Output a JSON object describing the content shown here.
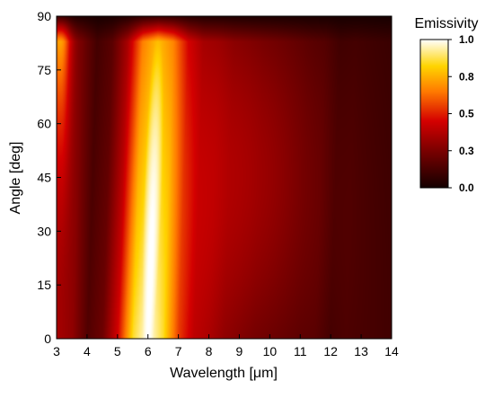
{
  "chart_data": {
    "type": "heatmap",
    "title": "",
    "xlabel": "Wavelength [μm]",
    "ylabel": "Angle  [deg]",
    "xlim": [
      3,
      14
    ],
    "ylim": [
      0,
      90
    ],
    "xticks": [
      "3",
      "4",
      "5",
      "6",
      "7",
      "8",
      "9",
      "10",
      "11",
      "12",
      "13",
      "14"
    ],
    "yticks": [
      "0",
      "15",
      "30",
      "45",
      "60",
      "75",
      "90"
    ],
    "grid": false,
    "colorbar": {
      "title": "Emissivity",
      "range": [
        0,
        1
      ],
      "ticks": [
        "0.0",
        "0.3",
        "0.5",
        "0.8",
        "1.0"
      ],
      "colors": [
        {
          "value": 0.0,
          "color": "#140000"
        },
        {
          "value": 0.25,
          "color": "#7a0000"
        },
        {
          "value": 0.45,
          "color": "#d40000"
        },
        {
          "value": 0.65,
          "color": "#ff7a00"
        },
        {
          "value": 0.82,
          "color": "#ffd400"
        },
        {
          "value": 1.0,
          "color": "#ffffff"
        }
      ]
    },
    "emissivity_peak_wavelength_um": 6.0,
    "emissivity_peak_value": 1.0,
    "wavelength_grid_um": [
      3,
      3.5,
      4,
      4.5,
      5,
      5.5,
      6,
      6.5,
      7,
      7.5,
      8,
      8.5,
      9,
      9.5,
      10,
      10.5,
      11,
      11.5,
      12,
      12.5,
      13,
      13.5,
      14
    ],
    "angle_grid_deg": [
      0,
      15,
      30,
      45,
      60,
      75,
      90
    ],
    "emissivity_at_normal": [
      0.35,
      0.3,
      0.15,
      0.22,
      0.45,
      0.85,
      1.0,
      0.85,
      0.55,
      0.4,
      0.36,
      0.3,
      0.27,
      0.24,
      0.22,
      0.2,
      0.18,
      0.17,
      0.12,
      0.14,
      0.13,
      0.12,
      0.11
    ]
  }
}
